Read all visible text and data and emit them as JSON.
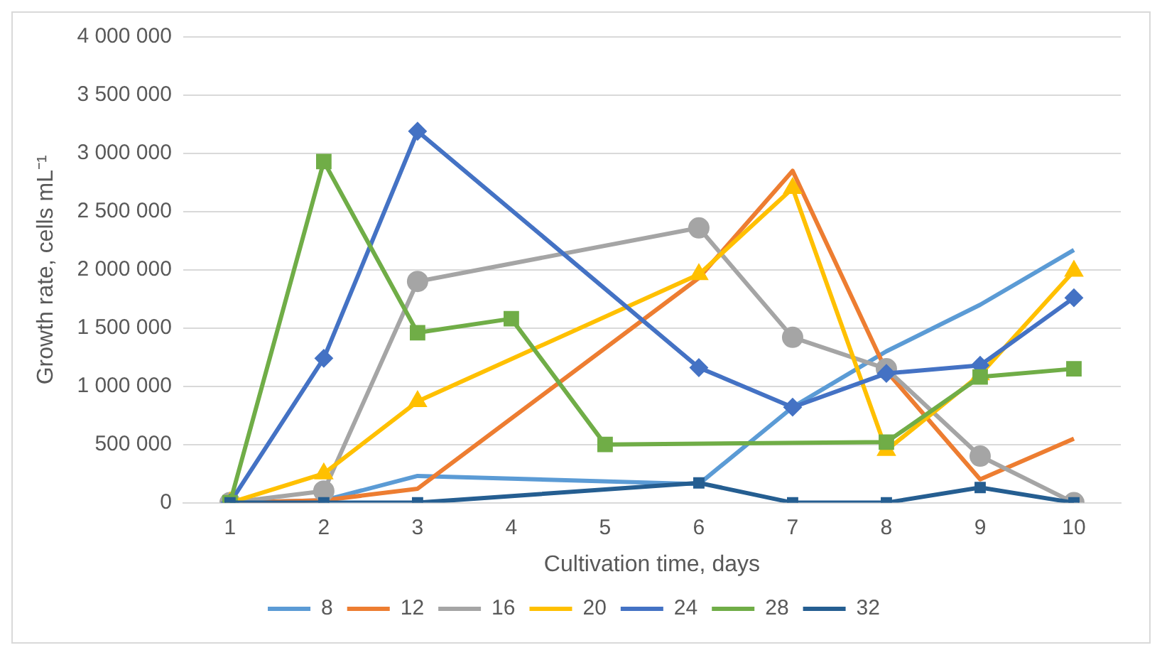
{
  "chart_data": {
    "type": "line",
    "xlabel": "Cultivation time, days",
    "ylabel": "Growth rate, cells mL⁻¹",
    "categories": [
      "1",
      "2",
      "3",
      "4",
      "5",
      "6",
      "7",
      "8",
      "9",
      "10"
    ],
    "ylim": [
      0,
      4000000
    ],
    "yticks": [
      {
        "value": 0,
        "label": "0"
      },
      {
        "value": 500000,
        "label": "500 000"
      },
      {
        "value": 1000000,
        "label": "1 000 000"
      },
      {
        "value": 1500000,
        "label": "1 500 000"
      },
      {
        "value": 2000000,
        "label": "2 000 000"
      },
      {
        "value": 2500000,
        "label": "2 500 000"
      },
      {
        "value": 3000000,
        "label": "3 000 000"
      },
      {
        "value": 3500000,
        "label": "3 500 000"
      },
      {
        "value": 4000000,
        "label": "4 000 000"
      }
    ],
    "grid": "y",
    "legend": "bottom",
    "line_style": "solid",
    "series": [
      {
        "name": "8",
        "color": "#5b9bd5",
        "marker": "none",
        "values": [
          0,
          20000,
          230000,
          null,
          null,
          160000,
          820000,
          1300000,
          1700000,
          2170000
        ]
      },
      {
        "name": "12",
        "color": "#ed7d31",
        "marker": "none",
        "values": [
          0,
          20000,
          120000,
          null,
          null,
          1930000,
          2850000,
          1130000,
          200000,
          550000
        ]
      },
      {
        "name": "16",
        "color": "#a5a5a5",
        "marker": "circle",
        "values": [
          0,
          100000,
          1900000,
          null,
          null,
          2360000,
          1420000,
          1150000,
          400000,
          0
        ]
      },
      {
        "name": "20",
        "color": "#ffc000",
        "marker": "triangle",
        "values": [
          0,
          250000,
          870000,
          null,
          null,
          1960000,
          2700000,
          450000,
          1100000,
          1990000
        ]
      },
      {
        "name": "24",
        "color": "#4472c4",
        "marker": "diamond",
        "values": [
          0,
          1240000,
          3190000,
          null,
          null,
          1160000,
          820000,
          1110000,
          1180000,
          1760000
        ]
      },
      {
        "name": "28",
        "color": "#70ad47",
        "marker": "square",
        "values": [
          0,
          2930000,
          1460000,
          1580000,
          500000,
          null,
          null,
          520000,
          1080000,
          1150000
        ]
      },
      {
        "name": "32",
        "color": "#255e91",
        "marker": "square",
        "values": [
          0,
          0,
          0,
          null,
          null,
          170000,
          0,
          0,
          130000,
          0
        ]
      }
    ]
  }
}
